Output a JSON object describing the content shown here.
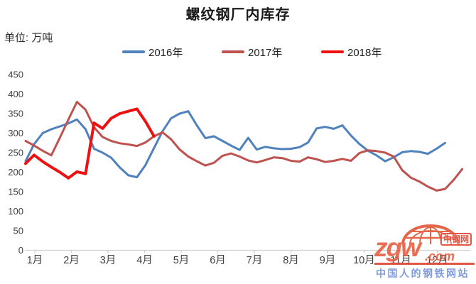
{
  "title": "螺纹钢厂内库存",
  "unit_label": "单位: 万吨",
  "legend": {
    "items": [
      {
        "label": "2016年"
      },
      {
        "label": "2017年"
      },
      {
        "label": "2018年"
      }
    ]
  },
  "watermark": {
    "logo_text": "zgw",
    "domain_suffix": ".com",
    "badge": "中钢网",
    "tagline": "中国人的钢铁网站",
    "accent_color": "#e0402e",
    "tagline_color": "#6f8fd8"
  },
  "colors": {
    "axis": "#cfcfcf",
    "tick_label": "#3f3f3f",
    "background": "#ffffff"
  },
  "chart_data": {
    "type": "line",
    "title": "螺纹钢厂内库存",
    "ylabel": "万吨",
    "ylim": [
      0,
      450
    ],
    "grid": false,
    "legend_position": "top",
    "x_frequency": "weekly",
    "x_axis": {
      "months": [
        "1月",
        "2月",
        "3月",
        "4月",
        "5月",
        "6月",
        "7月",
        "8月",
        "9月",
        "10月",
        "11月",
        "12月"
      ]
    },
    "y_axis": {
      "ticks": [
        0,
        50,
        100,
        150,
        200,
        250,
        300,
        350,
        400,
        450
      ]
    },
    "series": [
      {
        "name": "2016年",
        "color": "#4f81bd",
        "width": 3,
        "weekly_values": [
          228,
          272,
          300,
          310,
          317,
          325,
          335,
          310,
          260,
          250,
          237,
          212,
          192,
          187,
          218,
          262,
          305,
          338,
          350,
          356,
          320,
          287,
          292,
          280,
          268,
          257,
          288,
          258,
          265,
          261,
          259,
          260,
          264,
          276,
          312,
          316,
          311,
          320,
          294,
          272,
          255,
          243,
          228,
          238,
          251,
          254,
          252,
          247,
          260,
          275
        ]
      },
      {
        "name": "2017年",
        "color": "#bd524e",
        "width": 3,
        "weekly_values": [
          280,
          268,
          255,
          243,
          288,
          335,
          380,
          360,
          315,
          290,
          280,
          274,
          271,
          267,
          276,
          292,
          302,
          284,
          258,
          240,
          228,
          217,
          224,
          242,
          248,
          240,
          230,
          225,
          231,
          238,
          236,
          229,
          227,
          238,
          233,
          226,
          229,
          234,
          229,
          249,
          256,
          254,
          250,
          240,
          205,
          186,
          176,
          163,
          153,
          157,
          180,
          208
        ]
      },
      {
        "name": "2018年",
        "color": "#ee1111",
        "width": 4,
        "weekly_values": [
          222,
          244,
          227,
          213,
          200,
          185,
          201,
          196,
          326,
          312,
          338,
          350,
          356,
          362,
          330,
          292
        ]
      }
    ]
  }
}
